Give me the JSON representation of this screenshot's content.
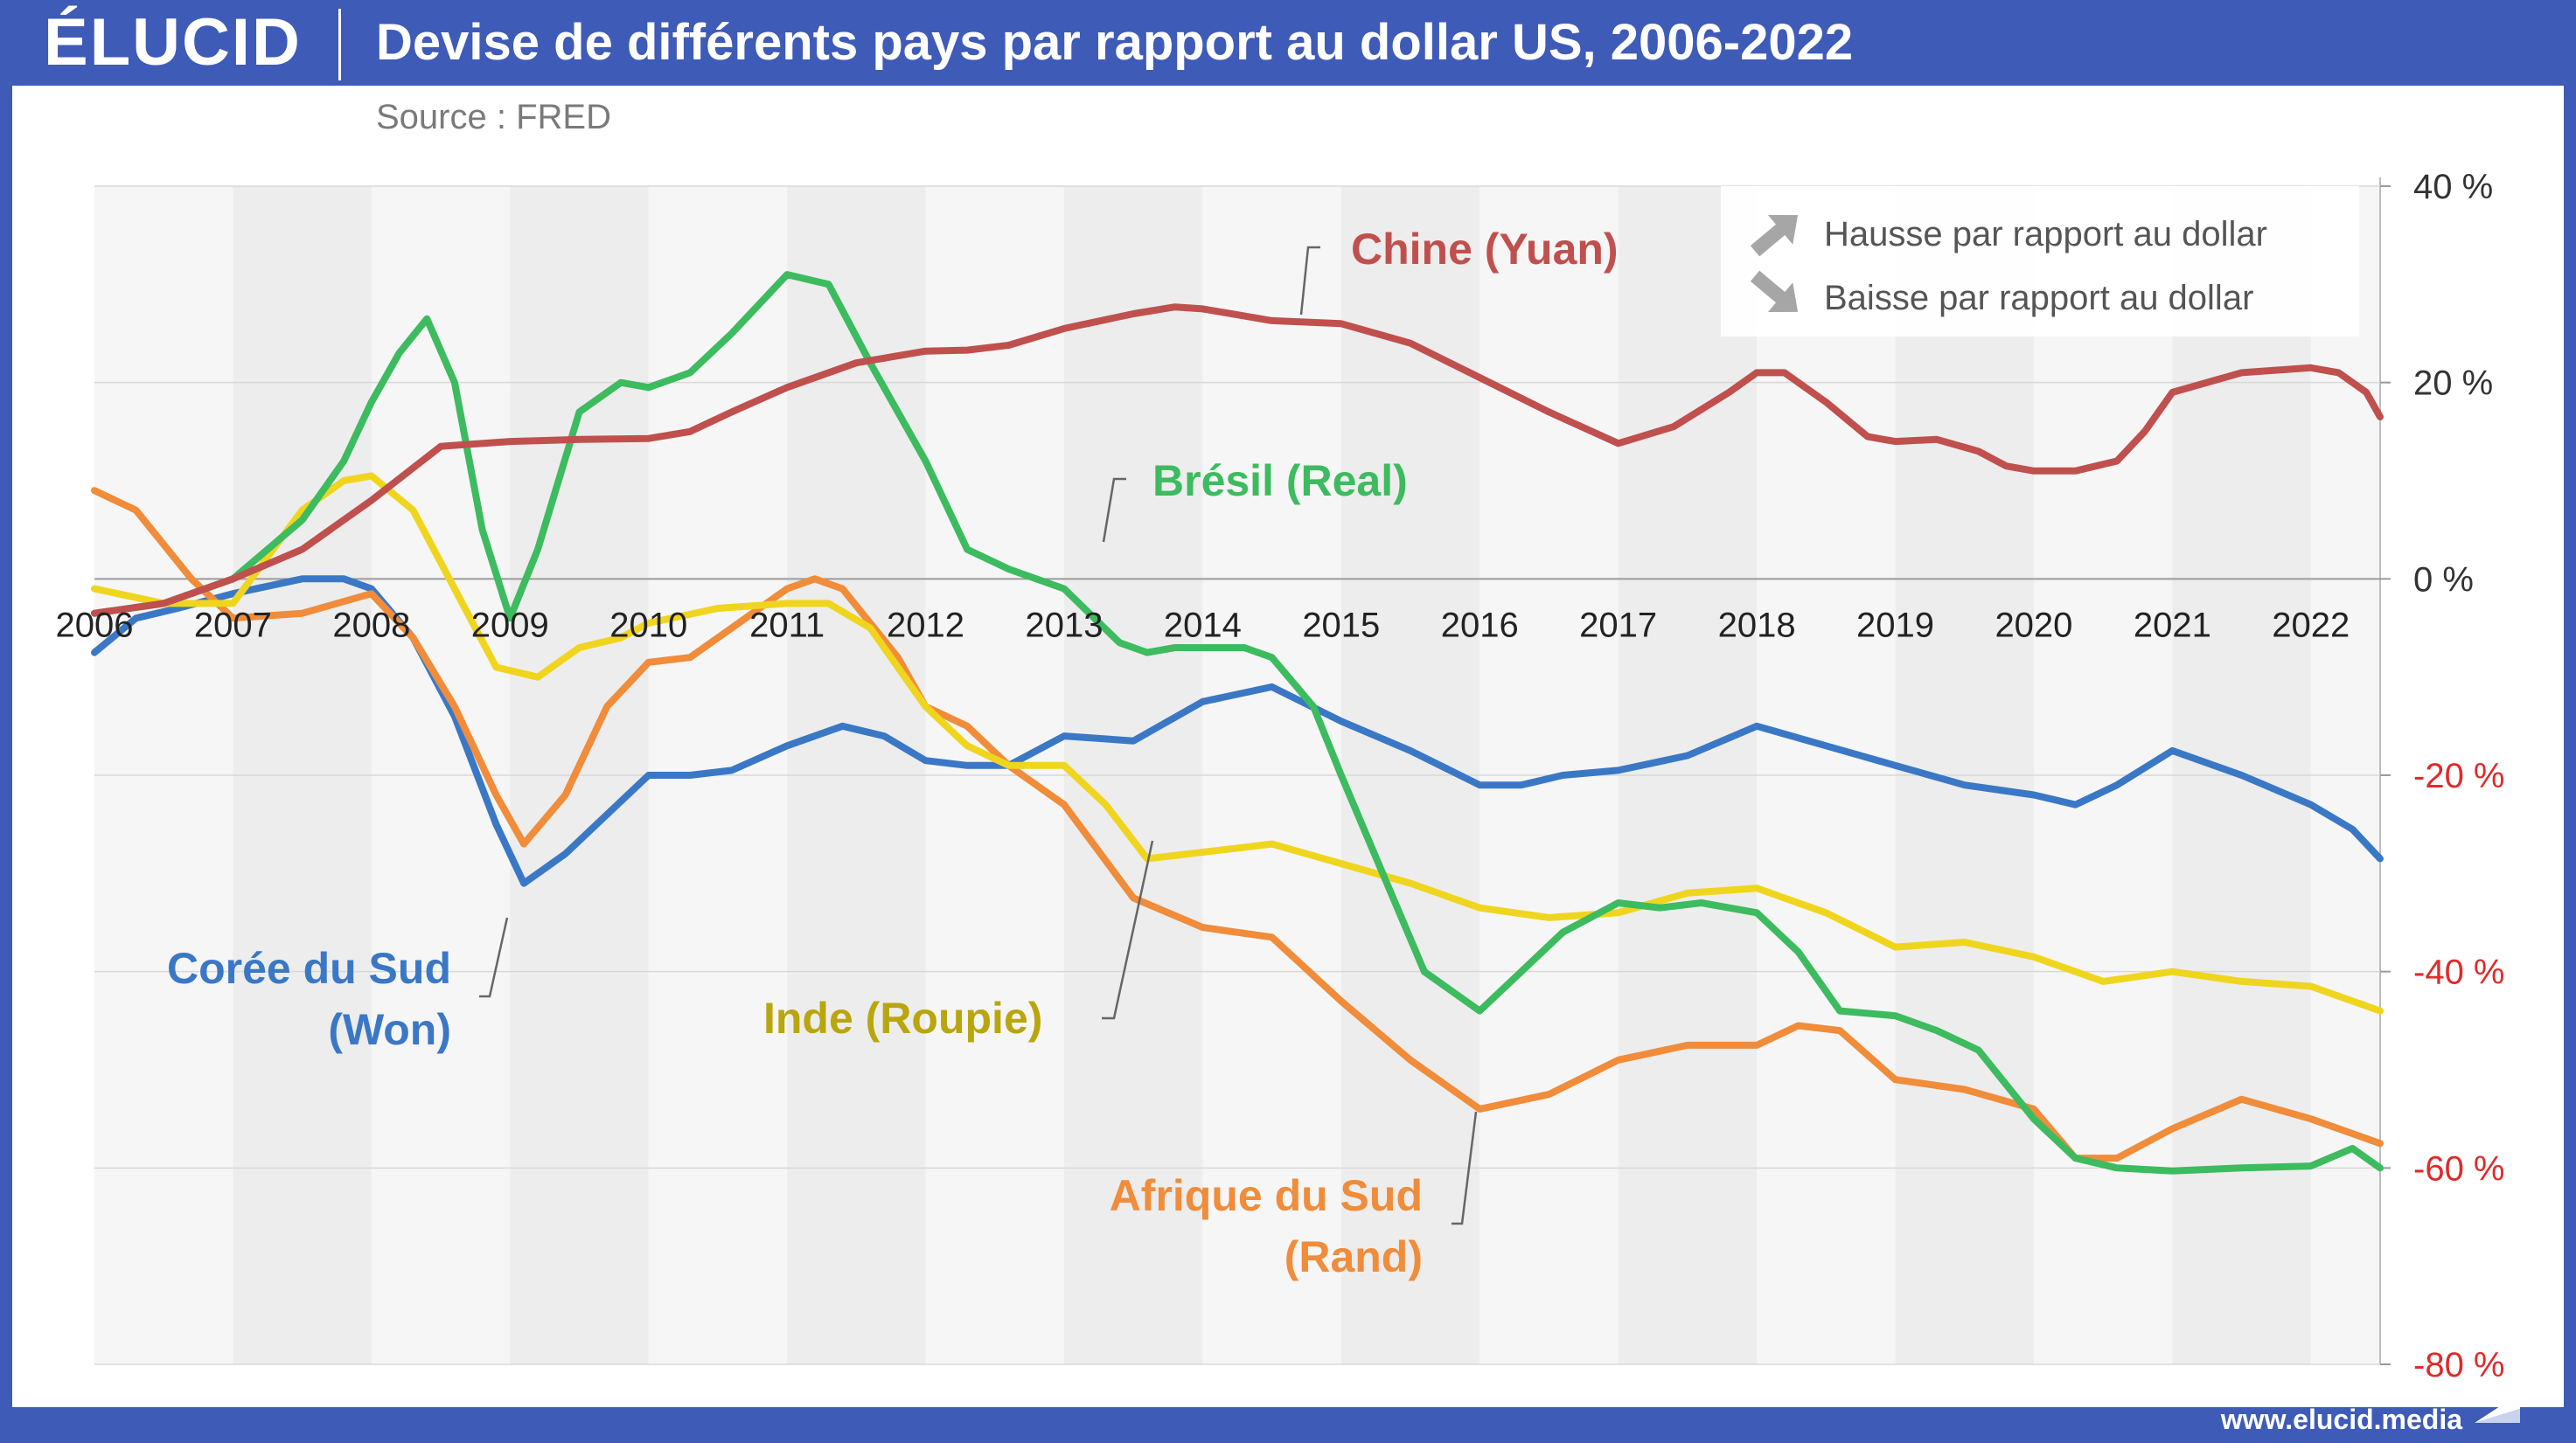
{
  "header": {
    "logo": "ÉLUCID",
    "title": "Devise de différents pays par rapport au dollar US, 2006-2022",
    "source": "Source : FRED"
  },
  "footer": {
    "url": "www.elucid.media"
  },
  "legend": {
    "up_label": "Hausse par rapport au dollar",
    "down_label": "Baisse par rapport au dollar"
  },
  "colors": {
    "frame": "#3e5bb8",
    "chine": "#c0504d",
    "bresil": "#3dbb5f",
    "coree": "#3a78c6",
    "inde": "#f0d51e",
    "inde_label": "#b9a60f",
    "afrique": "#f08c3a",
    "negative_tick": "#e02a2a",
    "band": "#ededed"
  },
  "chart_data": {
    "type": "line",
    "title": "Devise de différents pays par rapport au dollar US, 2006-2022",
    "xlabel": "",
    "ylabel": "",
    "x_ticks": [
      "2006",
      "2007",
      "2008",
      "2009",
      "2010",
      "2011",
      "2012",
      "2013",
      "2014",
      "2015",
      "2016",
      "2017",
      "2018",
      "2019",
      "2020",
      "2021",
      "2022"
    ],
    "y_ticks": [
      "40 %",
      "20 %",
      "0 %",
      "-20 %",
      "-40 %",
      "-60 %",
      "-80 %"
    ],
    "xlim": [
      2006,
      2022.5
    ],
    "ylim": [
      -80,
      40
    ],
    "y_axis_side": "right",
    "grid": true,
    "legend_position": "top-right",
    "series": [
      {
        "name": "Chine (Yuan)",
        "label_lines": [
          "Chine (Yuan)"
        ],
        "color_key": "chine",
        "x": [
          2006,
          2006.5,
          2007,
          2007.5,
          2008,
          2008.5,
          2009,
          2009.5,
          2010,
          2010.3,
          2010.6,
          2011,
          2011.5,
          2012,
          2012.3,
          2012.6,
          2013,
          2013.5,
          2013.8,
          2014,
          2014.5,
          2015,
          2015.5,
          2016,
          2016.5,
          2017,
          2017.4,
          2017.8,
          2018,
          2018.2,
          2018.5,
          2018.8,
          2019,
          2019.3,
          2019.6,
          2019.8,
          2020,
          2020.3,
          2020.6,
          2020.8,
          2021,
          2021.5,
          2022,
          2022.2,
          2022.4,
          2022.5
        ],
        "y": [
          -3.5,
          -2.5,
          0,
          3,
          8,
          13.5,
          14,
          14.2,
          14.3,
          15,
          17,
          19.5,
          22,
          23.2,
          23.3,
          23.8,
          25.5,
          27,
          27.7,
          27.5,
          26.3,
          26,
          24,
          20.5,
          17,
          13.8,
          15.5,
          19,
          21,
          21,
          18,
          14.5,
          14,
          14.2,
          13,
          11.5,
          11,
          11,
          12,
          15,
          19,
          21,
          21.5,
          21,
          19,
          16.5
        ]
      },
      {
        "name": "Brésil (Real)",
        "label_lines": [
          "Brésil (Real)"
        ],
        "color_key": "bresil",
        "x": [
          2006,
          2006.5,
          2007,
          2007.5,
          2007.8,
          2008,
          2008.2,
          2008.4,
          2008.6,
          2008.8,
          2009,
          2009.2,
          2009.5,
          2009.8,
          2010,
          2010.3,
          2010.6,
          2011,
          2011.3,
          2011.6,
          2012,
          2012.3,
          2012.6,
          2013,
          2013.4,
          2013.6,
          2013.8,
          2014,
          2014.3,
          2014.5,
          2014.8,
          2015,
          2015.3,
          2015.6,
          2016,
          2016.3,
          2016.6,
          2017,
          2017.3,
          2017.6,
          2018,
          2018.3,
          2018.6,
          2019,
          2019.3,
          2019.6,
          2020,
          2020.3,
          2020.6,
          2021,
          2021.5,
          2022,
          2022.3,
          2022.5
        ],
        "y": [
          -3.5,
          -2.5,
          0,
          6,
          12,
          18,
          23,
          26.5,
          20,
          5,
          -4,
          3,
          17,
          20,
          19.5,
          21,
          25,
          31,
          30,
          22,
          12,
          3,
          1,
          -1,
          -6.5,
          -7.5,
          -7,
          -7,
          -7,
          -8,
          -13,
          -20,
          -30,
          -40,
          -44,
          -40,
          -36,
          -33,
          -33.5,
          -33,
          -34,
          -38,
          -44,
          -44.5,
          -46,
          -48,
          -55,
          -59,
          -60,
          -60.3,
          -60,
          -59.8,
          -58,
          -60
        ]
      },
      {
        "name": "Corée du Sud (Won)",
        "label_lines": [
          "Corée du Sud",
          "(Won)"
        ],
        "color_key": "coree",
        "x": [
          2006,
          2006.3,
          2006.6,
          2007,
          2007.5,
          2007.8,
          2008,
          2008.3,
          2008.6,
          2008.9,
          2009.1,
          2009.4,
          2009.7,
          2010,
          2010.3,
          2010.6,
          2011,
          2011.4,
          2011.7,
          2012,
          2012.3,
          2012.6,
          2013,
          2013.5,
          2014,
          2014.5,
          2015,
          2015.5,
          2016,
          2016.3,
          2016.6,
          2017,
          2017.5,
          2018,
          2018.5,
          2019,
          2019.5,
          2020,
          2020.3,
          2020.6,
          2021,
          2021.5,
          2022,
          2022.3,
          2022.5
        ],
        "y": [
          -7.5,
          -4,
          -3,
          -1.5,
          0,
          0,
          -1,
          -6,
          -14,
          -25,
          -31,
          -28,
          -24,
          -20,
          -20,
          -19.5,
          -17,
          -15,
          -16,
          -18.5,
          -19,
          -19,
          -16,
          -16.5,
          -12.5,
          -11,
          -14.5,
          -17.5,
          -21,
          -21,
          -20,
          -19.5,
          -18,
          -15,
          -17,
          -19,
          -21,
          -22,
          -23,
          -21,
          -17.5,
          -20,
          -23,
          -25.5,
          -28.5
        ]
      },
      {
        "name": "Inde (Roupie)",
        "label_lines": [
          "Inde (Roupie)"
        ],
        "color_key": "inde",
        "x": [
          2006,
          2006.5,
          2007,
          2007.5,
          2007.8,
          2008,
          2008.3,
          2008.6,
          2008.9,
          2009.2,
          2009.5,
          2009.8,
          2010,
          2010.5,
          2011,
          2011.3,
          2011.6,
          2012,
          2012.3,
          2012.6,
          2013,
          2013.3,
          2013.6,
          2013.9,
          2014.2,
          2014.5,
          2015,
          2015.5,
          2016,
          2016.5,
          2017,
          2017.5,
          2018,
          2018.5,
          2019,
          2019.5,
          2020,
          2020.5,
          2021,
          2021.5,
          2022,
          2022.5
        ],
        "y": [
          -1,
          -2.5,
          -2.5,
          7,
          10,
          10.5,
          7,
          -1,
          -9,
          -10,
          -7,
          -6,
          -4.5,
          -3,
          -2.5,
          -2.5,
          -5,
          -13,
          -17,
          -19,
          -19,
          -23,
          -28.5,
          -28,
          -27.5,
          -27,
          -29,
          -31,
          -33.5,
          -34.5,
          -34,
          -32,
          -31.5,
          -34,
          -37.5,
          -37,
          -38.5,
          -41,
          -40,
          -41,
          -41.5,
          -44
        ]
      },
      {
        "name": "Afrique du Sud (Rand)",
        "label_lines": [
          "Afrique du Sud",
          "(Rand)"
        ],
        "color_key": "afrique",
        "x": [
          2006,
          2006.3,
          2006.7,
          2007,
          2007.5,
          2008,
          2008.3,
          2008.6,
          2008.9,
          2009.1,
          2009.4,
          2009.7,
          2010,
          2010.3,
          2010.7,
          2011,
          2011.2,
          2011.4,
          2011.8,
          2012,
          2012.3,
          2012.6,
          2013,
          2013.5,
          2014,
          2014.5,
          2015,
          2015.5,
          2016,
          2016.5,
          2017,
          2017.5,
          2018,
          2018.3,
          2018.6,
          2019,
          2019.5,
          2020,
          2020.3,
          2020.6,
          2021,
          2021.5,
          2022,
          2022.3,
          2022.5
        ],
        "y": [
          9,
          7,
          0,
          -4,
          -3.5,
          -1.5,
          -6,
          -13,
          -22,
          -27,
          -22,
          -13,
          -8.5,
          -8,
          -4,
          -1,
          0,
          -1,
          -8,
          -13,
          -15,
          -19,
          -23,
          -32.5,
          -35.5,
          -36.5,
          -43,
          -49,
          -54,
          -52.5,
          -49,
          -47.5,
          -47.5,
          -45.5,
          -46,
          -51,
          -52,
          -54,
          -59,
          -59,
          -56,
          -53,
          -55,
          -56.5,
          -57.5
        ]
      }
    ]
  }
}
